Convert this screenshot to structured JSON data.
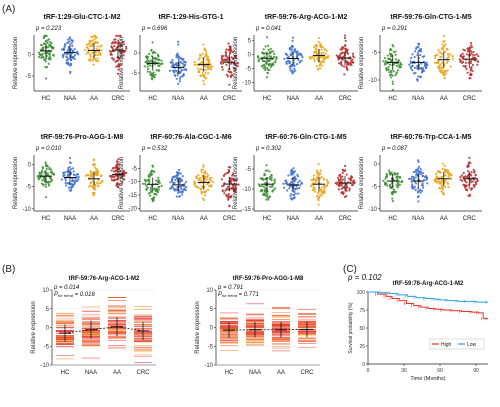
{
  "panel_labels": [
    "(A)",
    "(B)",
    "(C)"
  ],
  "colors": {
    "HC": "#3a8f2f",
    "NAA": "#3c6fd0",
    "AA": "#e6a418",
    "CRC": "#b52d2d",
    "bar_red": "#e8362f",
    "bar_orange": "#f08a1c",
    "km_high": "#e53128",
    "km_low": "#2e9fe0"
  },
  "chart_data": [
    {
      "type": "scatter",
      "panel": "A",
      "title": "tRF-1:29-Glu-CTC-1-M2",
      "pvalue_text": "p = 0.223",
      "ylabel": "Relative expression",
      "categories": [
        "HC",
        "NAA",
        "AA",
        "CRC"
      ],
      "ylim": [
        -8.5,
        4.5
      ],
      "yticks": [
        -5,
        0
      ],
      "group_means": [
        0.8,
        0.4,
        0.9,
        1.0
      ],
      "group_spread": [
        2.0,
        1.8,
        2.0,
        2.1
      ]
    },
    {
      "type": "scatter",
      "panel": "A",
      "title": "tRF-1:29-His-GTG-1",
      "pvalue_text": "p = 0.696",
      "ylabel": "Relative expression",
      "categories": [
        "HC",
        "NAA",
        "AA",
        "CRC"
      ],
      "ylim": [
        -9.5,
        4.5
      ],
      "yticks": [
        -5,
        0
      ],
      "group_means": [
        -2.6,
        -3.6,
        -2.9,
        -2.3
      ],
      "group_spread": [
        2.0,
        1.9,
        2.0,
        2.2
      ]
    },
    {
      "type": "scatter",
      "panel": "A",
      "title": "tRF-59:76-Arg-ACG-1-M2",
      "pvalue_text": "p = 0.041",
      "ylabel": "Relative expression",
      "categories": [
        "HC",
        "NAA",
        "AA",
        "CRC"
      ],
      "ylim": [
        -13,
        7
      ],
      "yticks": [
        -10,
        -5,
        0,
        5
      ],
      "group_means": [
        -1.3,
        -1.4,
        -0.3,
        -1.2
      ],
      "group_spread": [
        2.6,
        2.6,
        2.6,
        2.8
      ]
    },
    {
      "type": "scatter",
      "panel": "A",
      "title": "tRF-59:76-Gln-CTG-1-M5",
      "pvalue_text": "p = 0.291",
      "ylabel": "Relative expression",
      "categories": [
        "HC",
        "NAA",
        "AA",
        "CRC"
      ],
      "ylim": [
        -12,
        -1.8
      ],
      "yticks": [
        -10,
        -5
      ],
      "group_means": [
        -6.8,
        -6.8,
        -6.3,
        -6.2
      ],
      "group_spread": [
        1.6,
        1.6,
        1.6,
        1.8
      ]
    },
    {
      "type": "scatter",
      "panel": "A",
      "title": "tRF-59:76-Pro-AGG-1-M8",
      "pvalue_text": "p = 0.010",
      "ylabel": "Relative expression",
      "categories": [
        "HC",
        "NAA",
        "AA",
        "CRC"
      ],
      "ylim": [
        -10.5,
        2.2
      ],
      "yticks": [
        -10,
        -5,
        0
      ],
      "group_means": [
        -2.6,
        -2.9,
        -3.2,
        -2.2
      ],
      "group_spread": [
        1.5,
        1.5,
        1.6,
        1.5
      ]
    },
    {
      "type": "scatter",
      "panel": "A",
      "title": "tRF-60:76-Ala-CGC-1-M6",
      "pvalue_text": "p = 0.532",
      "ylabel": "Relative expression",
      "categories": [
        "HC",
        "NAA",
        "AA",
        "CRC"
      ],
      "ylim": [
        -21,
        0
      ],
      "yticks": [
        -20,
        -15,
        -10,
        -5
      ],
      "group_means": [
        -11.0,
        -11.2,
        -10.3,
        -10.9
      ],
      "group_spread": [
        2.8,
        2.8,
        3.0,
        3.0
      ]
    },
    {
      "type": "scatter",
      "panel": "A",
      "title": "tRF-60:76-Gln-CTG-1-M5",
      "pvalue_text": "p = 0.302",
      "ylabel": "Relative expression",
      "categories": [
        "HC",
        "NAA",
        "AA",
        "CRC"
      ],
      "ylim": [
        -15.5,
        -1.5
      ],
      "yticks": [
        -15,
        -10,
        -5
      ],
      "group_means": [
        -8.8,
        -9.0,
        -8.8,
        -8.5
      ],
      "group_spread": [
        2.0,
        2.0,
        2.0,
        1.9
      ]
    },
    {
      "type": "scatter",
      "panel": "A",
      "title": "tRF-60:76-Trp-CCA-1-M5",
      "pvalue_text": "p = 0.087",
      "ylabel": "Relative expression",
      "categories": [
        "HC",
        "NAA",
        "AA",
        "CRC"
      ],
      "ylim": [
        -10.5,
        2.0
      ],
      "yticks": [
        -10,
        -5,
        0
      ],
      "group_means": [
        -3.8,
        -3.8,
        -3.3,
        -3.3
      ],
      "group_spread": [
        1.7,
        1.7,
        1.7,
        1.7
      ]
    },
    {
      "type": "scatter",
      "panel": "B",
      "title": "tRF-59:76-Arg-ACG-1-M2",
      "pvalue_text": "p = 0.014",
      "pvalue_trend_label": "P",
      "pvalue_trend_sub": "for trend",
      "pvalue_trend_value": " = 0.016",
      "ylabel": "Relative expression",
      "categories": [
        "HC",
        "NAA",
        "AA",
        "CRC"
      ],
      "ylim": [
        -10,
        10
      ],
      "yticks": [
        -10,
        -5,
        0,
        5,
        10
      ],
      "group_means": [
        -1.5,
        -0.6,
        0.2,
        -0.9
      ],
      "group_spread": [
        2.6,
        2.7,
        2.8,
        2.7
      ]
    },
    {
      "type": "scatter",
      "panel": "B",
      "title": "tRF-59:76-Pro-AGG-1-M8",
      "pvalue_text": "p = 0.791",
      "pvalue_trend_label": "P",
      "pvalue_trend_sub": "for trend",
      "pvalue_trend_value": " = 0.771",
      "ylabel": "Relative expression",
      "categories": [
        "HC",
        "NAA",
        "AA",
        "CRC"
      ],
      "ylim": [
        -10,
        10
      ],
      "yticks": [
        -10,
        -5,
        0,
        5,
        10
      ],
      "group_means": [
        -0.7,
        -0.6,
        -0.6,
        -0.5
      ],
      "group_spread": [
        2.3,
        2.3,
        2.3,
        2.3
      ]
    },
    {
      "type": "line",
      "panel": "C",
      "title": "tRF-59:76-Arg-ACG-1-M2",
      "pvalue_text": "p = 0.102",
      "xlabel": "Time (Months)",
      "ylabel": "Survival probability (%)",
      "xlim": [
        0,
        100
      ],
      "ylim": [
        0,
        100
      ],
      "xticks": [
        0,
        30,
        60,
        90
      ],
      "yticks": [
        0,
        25,
        50,
        75,
        100
      ],
      "legend_title": "",
      "legend_position": "bottom-right",
      "series": [
        {
          "name": "High",
          "x": [
            0,
            8,
            15,
            20,
            26,
            32,
            38,
            44,
            50,
            56,
            62,
            70,
            78,
            86,
            92,
            96,
            100
          ],
          "y": [
            100,
            97,
            94,
            91,
            88,
            84,
            81,
            79,
            77,
            76,
            75,
            74,
            73,
            72,
            71,
            63,
            63
          ]
        },
        {
          "name": "Low",
          "x": [
            0,
            10,
            18,
            25,
            33,
            40,
            48,
            55,
            60,
            66,
            75,
            82,
            90,
            100
          ],
          "y": [
            100,
            99,
            98,
            96,
            94,
            92,
            91,
            90,
            89,
            88,
            87,
            87,
            86,
            86
          ]
        }
      ]
    }
  ]
}
